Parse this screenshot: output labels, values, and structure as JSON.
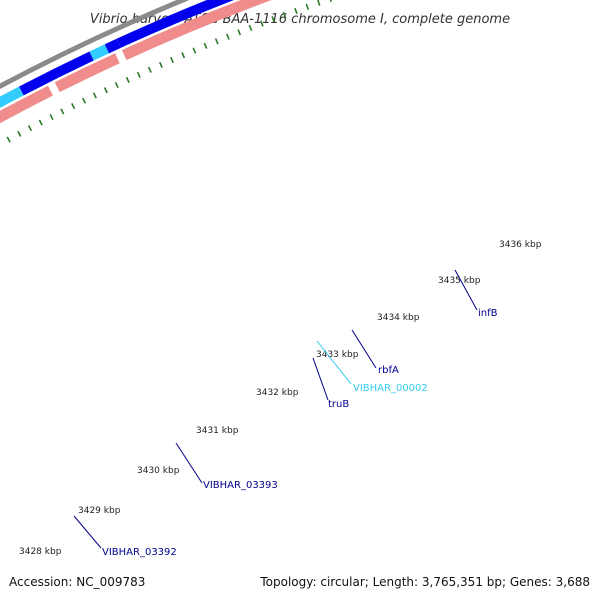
{
  "title": "Vibrio harveyi ATCC BAA-1116 chromosome I, complete genome",
  "footer": {
    "accession": "Accession: NC_009783",
    "summary": "Topology: circular; Length: 3,765,351 bp; Genes: 3,688"
  },
  "colors": {
    "backbone": "#8a8a8a",
    "forward_cds": "#0000ee",
    "forward_other": "#33ccff",
    "reverse_cds": "#f08c8c",
    "reverse_pseudo": "#c0c0c0",
    "reverse_other": "#ff8c00",
    "tick": "#2a7a2a",
    "label_blue": "#00008b",
    "label_cyan": "#33ccee"
  },
  "kbp_labels": [
    "3428 kbp",
    "3429 kbp",
    "3430 kbp",
    "3431 kbp",
    "3432 kbp",
    "3433 kbp",
    "3434 kbp",
    "3435 kbp",
    "3436 kbp"
  ],
  "gene_labels": [
    {
      "name": "VIBHAR_03392",
      "color": "#00008b"
    },
    {
      "name": "VIBHAR_03393",
      "color": "#00008b"
    },
    {
      "name": "truB",
      "color": "#00008b"
    },
    {
      "name": "VIBHAR_00002",
      "color": "#33ccee"
    },
    {
      "name": "rbfA",
      "color": "#00008b"
    },
    {
      "name": "infB",
      "color": "#00008b"
    }
  ]
}
